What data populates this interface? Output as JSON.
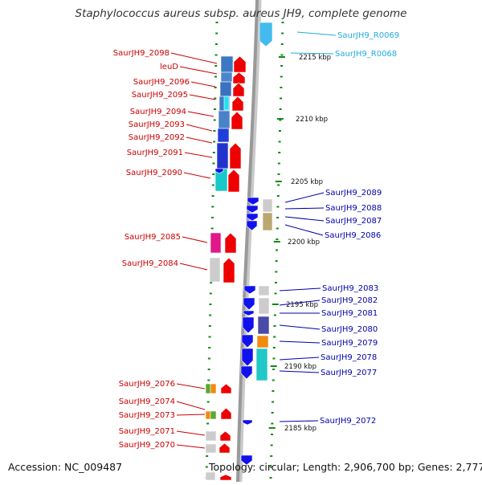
{
  "title": "Staphylococcus aureus subsp. aureus JH9, complete genome",
  "footer": {
    "accession": "Accession: NC_009487",
    "topology": "Topology: circular; Length: 2,906,700 bp; Genes: 2,777"
  },
  "colors": {
    "left_label": "#cc0000",
    "right_label": "#0000aa",
    "rna_label": "#22aadd",
    "backbone": "#999999",
    "tick": "#118811"
  },
  "scale_labels": [
    "2215 kbp",
    "2210 kbp",
    "2205 kbp",
    "2200 kbp",
    "2195 kbp",
    "2190 kbp",
    "2185 kbp"
  ],
  "left_genes": [
    "SaurJH9_2098",
    "leuD",
    "SaurJH9_2096",
    "SaurJH9_2095",
    "SaurJH9_2094",
    "SaurJH9_2093",
    "SaurJH9_2092",
    "SaurJH9_2091",
    "SaurJH9_2090",
    "SaurJH9_2085",
    "SaurJH9_2084",
    "SaurJH9_2076",
    "SaurJH9_2074",
    "SaurJH9_2073",
    "SaurJH9_2071",
    "SaurJH9_2070"
  ],
  "right_genes": [
    "SaurJH9_2089",
    "SaurJH9_2088",
    "SaurJH9_2087",
    "SaurJH9_2086",
    "SaurJH9_2083",
    "SaurJH9_2082",
    "SaurJH9_2081",
    "SaurJH9_2080",
    "SaurJH9_2079",
    "SaurJH9_2078",
    "SaurJH9_2077",
    "SaurJH9_2072"
  ],
  "rna_genes": [
    "SaurJH9_R0069",
    "SaurJH9_R0068"
  ]
}
